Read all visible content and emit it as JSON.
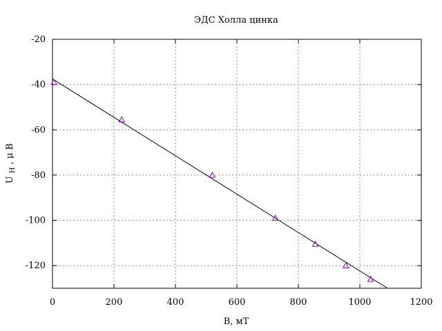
{
  "chart_data": {
    "type": "scatter",
    "title": "ЭДС Холла цинка",
    "xlabel": "B, мТ",
    "ylabel_main": "U",
    "ylabel_sub": "H",
    "ylabel_rest": ", μ В",
    "xlim": [
      0,
      1200
    ],
    "ylim": [
      -130,
      -20
    ],
    "xticks": [
      0,
      200,
      400,
      600,
      800,
      1000,
      1200
    ],
    "yticks": [
      -20,
      -40,
      -60,
      -80,
      -100,
      -120
    ],
    "grid": true,
    "series": [
      {
        "marker": "triangle",
        "color": "#8b00b0",
        "x": [
          5,
          225,
          520,
          725,
          855,
          955,
          1035
        ],
        "y": [
          -39,
          -55.5,
          -80,
          -99,
          -110.5,
          -120,
          -126
        ]
      }
    ],
    "fit_line": {
      "color": "#000000",
      "x": [
        0,
        1090
      ],
      "y": [
        -37.5,
        -130
      ]
    }
  }
}
